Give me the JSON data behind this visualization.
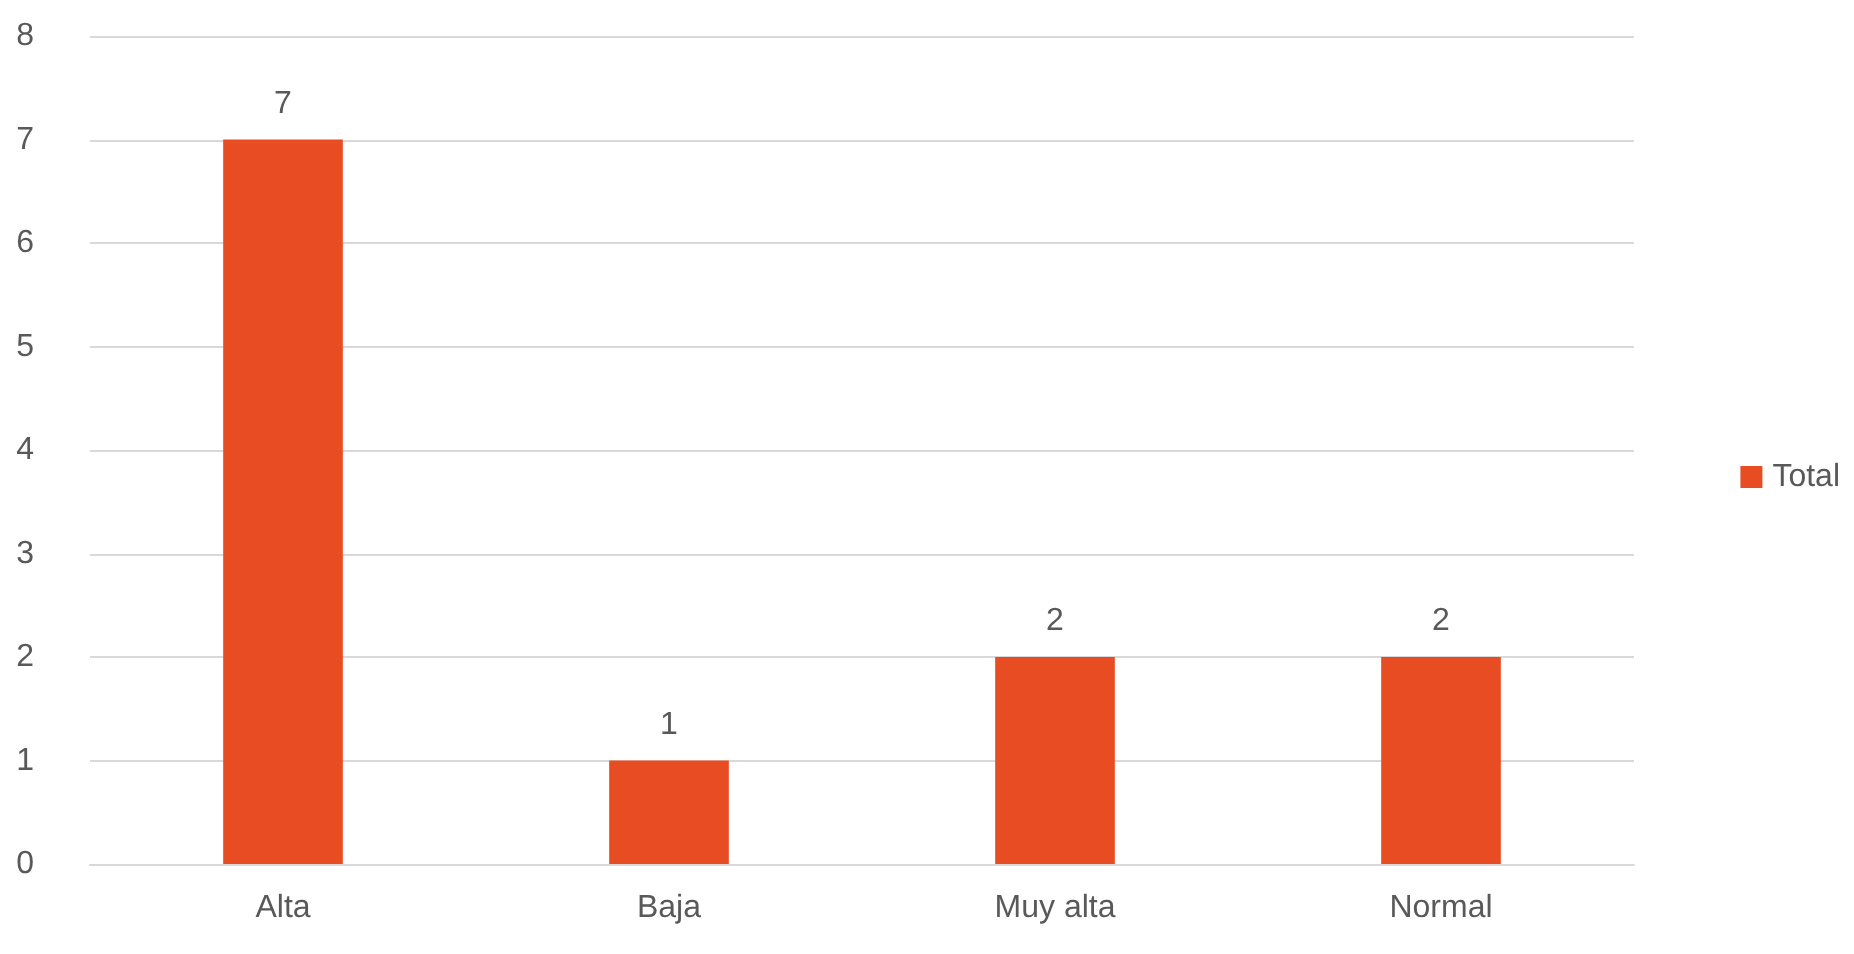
{
  "chart_data": {
    "type": "bar",
    "categories": [
      "Alta",
      "Baja",
      "Muy alta",
      "Normal"
    ],
    "series": [
      {
        "name": "Total",
        "color": "#e84c22",
        "values": [
          7,
          1,
          2,
          2
        ]
      }
    ],
    "ylim": [
      0,
      8
    ],
    "yticks": [
      0,
      1,
      2,
      3,
      4,
      5,
      6,
      7,
      8
    ],
    "grid": "y",
    "legend": "right",
    "data_labels": true
  }
}
